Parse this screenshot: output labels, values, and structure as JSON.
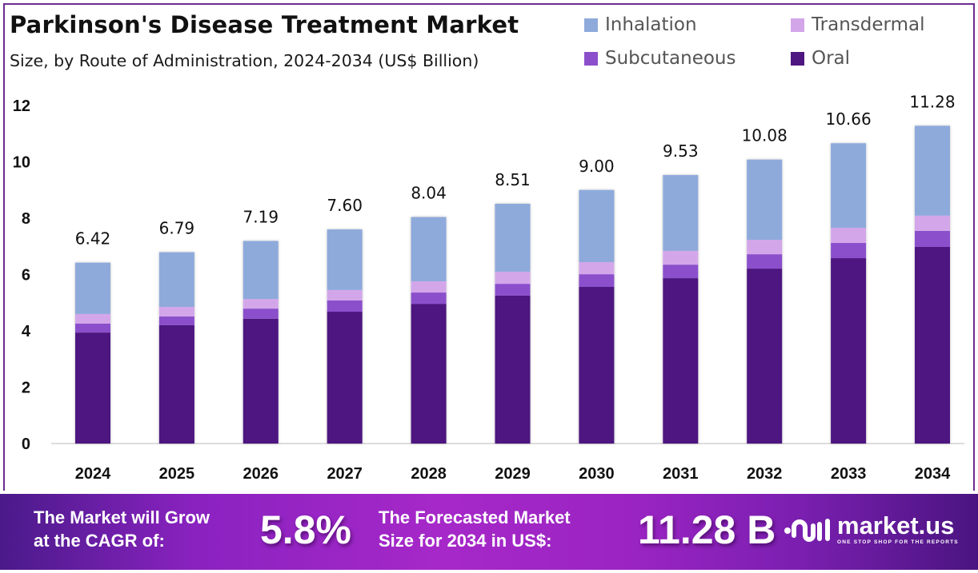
{
  "header": {
    "title": "Parkinson's Disease Treatment Market",
    "subtitle": "Size, by Route of Administration, 2024-2034 (US$ Billion)"
  },
  "colors": {
    "Inhalation": "#8eaadb",
    "Transdermal": "#d3a6ea",
    "Subcutaneous": "#8b4fcc",
    "Oral": "#4e1680",
    "border": "#6b2d8f"
  },
  "legend": [
    {
      "label": "Inhalation",
      "color": "#8eaadb"
    },
    {
      "label": "Transdermal",
      "color": "#d3a6ea"
    },
    {
      "label": "Subcutaneous",
      "color": "#8b4fcc"
    },
    {
      "label": "Oral",
      "color": "#4e1680"
    }
  ],
  "chart_data": {
    "type": "bar",
    "stacked": true,
    "title": "Parkinson's Disease Treatment Market",
    "subtitle": "Size, by Route of Administration, 2024-2034 (US$ Billion)",
    "xlabel": "",
    "ylabel": "",
    "categories": [
      "2024",
      "2025",
      "2026",
      "2027",
      "2028",
      "2029",
      "2030",
      "2031",
      "2032",
      "2033",
      "2034"
    ],
    "series": [
      {
        "name": "Oral",
        "values": [
          3.94,
          4.2,
          4.43,
          4.68,
          4.96,
          5.25,
          5.56,
          5.87,
          6.21,
          6.58,
          6.98
        ]
      },
      {
        "name": "Subcutaneous",
        "values": [
          0.32,
          0.31,
          0.36,
          0.4,
          0.4,
          0.42,
          0.45,
          0.48,
          0.51,
          0.54,
          0.57
        ]
      },
      {
        "name": "Transdermal",
        "values": [
          0.34,
          0.34,
          0.34,
          0.37,
          0.4,
          0.43,
          0.43,
          0.49,
          0.51,
          0.54,
          0.54
        ]
      },
      {
        "name": "Inhalation",
        "values": [
          1.82,
          1.94,
          2.06,
          2.15,
          2.28,
          2.41,
          2.56,
          2.69,
          2.85,
          3.0,
          3.19
        ]
      }
    ],
    "totals": [
      6.42,
      6.79,
      7.19,
      7.6,
      8.04,
      8.51,
      9.0,
      9.53,
      10.08,
      10.66,
      11.28
    ],
    "total_labels": [
      "6.42",
      "6.79",
      "7.19",
      "7.60",
      "8.04",
      "8.51",
      "9.00",
      "9.53",
      "10.08",
      "10.66",
      "11.28"
    ],
    "ylim": [
      0,
      12
    ],
    "yticks": [
      0,
      2,
      4,
      6,
      8,
      10,
      12
    ],
    "grid": false,
    "legend_position": "top-right"
  },
  "footer": {
    "cagr_text_line1": "The Market will Grow",
    "cagr_text_line2": "at the CAGR of:",
    "cagr_value": "5.8%",
    "forecast_text_line1": "The Forecasted Market",
    "forecast_text_line2": "Size for 2034 in US$:",
    "forecast_value": "11.28 B",
    "logo_name": "market.us",
    "logo_tagline": "ONE STOP SHOP FOR THE REPORTS"
  }
}
